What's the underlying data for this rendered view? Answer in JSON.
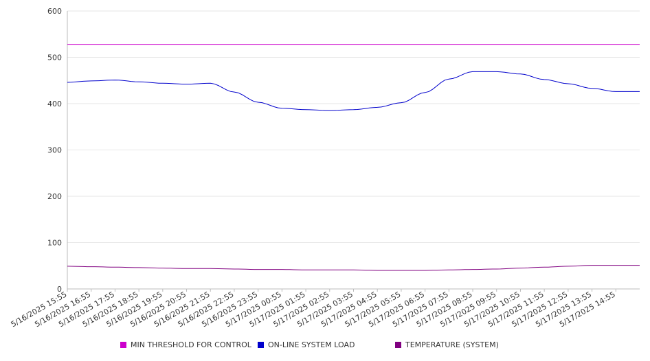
{
  "chart_data": {
    "type": "line",
    "title": "",
    "xlabel": "",
    "ylabel": "",
    "ylim": [
      0,
      600
    ],
    "yticks": [
      0,
      100,
      200,
      300,
      400,
      500,
      600
    ],
    "grid": true,
    "legend_position": "bottom",
    "categories": [
      "5/16/2025 15:55",
      "5/16/2025 16:55",
      "5/16/2025 17:55",
      "5/16/2025 18:55",
      "5/16/2025 19:55",
      "5/16/2025 20:55",
      "5/16/2025 21:55",
      "5/16/2025 22:55",
      "5/16/2025 23:55",
      "5/17/2025 00:55",
      "5/17/2025 01:55",
      "5/17/2025 02:55",
      "5/17/2025 03:55",
      "5/17/2025 04:55",
      "5/17/2025 05:55",
      "5/17/2025 06:55",
      "5/17/2025 07:55",
      "5/17/2025 08:55",
      "5/17/2025 09:55",
      "5/17/2025 10:55",
      "5/17/2025 11:55",
      "5/17/2025 12:55",
      "5/17/2025 13:55",
      "5/17/2025 14:55"
    ],
    "series": [
      {
        "name": "MIN THRESHOLD FOR CONTROL",
        "color": "#cc00cc",
        "values": [
          528,
          528,
          528,
          528,
          528,
          528,
          528,
          528,
          528,
          528,
          528,
          528,
          528,
          528,
          528,
          528,
          528,
          528,
          528,
          528,
          528,
          528,
          528,
          528
        ]
      },
      {
        "name": "ON-LINE SYSTEM LOAD",
        "color": "#0000cc",
        "values": [
          446,
          449,
          451,
          447,
          444,
          442,
          444,
          425,
          403,
          390,
          387,
          385,
          387,
          392,
          402,
          424,
          453,
          469,
          469,
          464,
          452,
          443,
          433,
          426
        ]
      },
      {
        "name": "TEMPERATURE (SYSTEM)",
        "color": "#800080",
        "values": [
          49,
          48,
          47,
          46,
          45,
          44,
          44,
          43,
          42,
          42,
          41,
          41,
          41,
          40,
          40,
          40,
          41,
          42,
          43,
          45,
          47,
          49,
          51,
          51
        ]
      }
    ]
  }
}
